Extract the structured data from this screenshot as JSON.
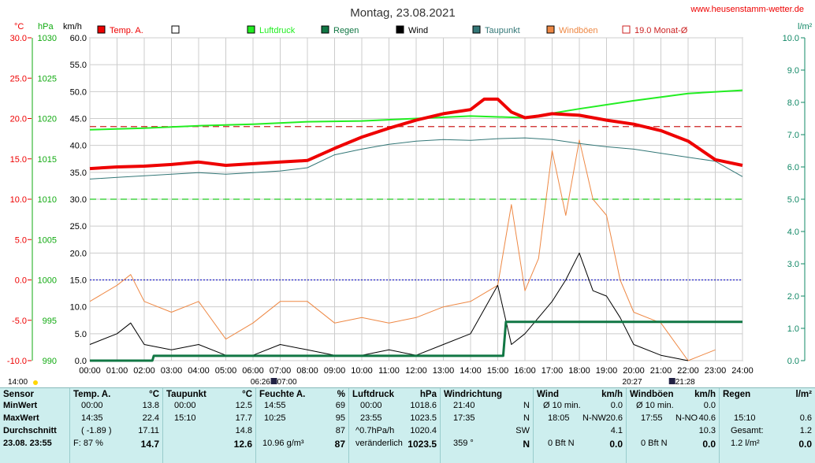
{
  "title": "Montag, 23.08.2021",
  "site": "www.heusenstamm-wetter.de",
  "axes": {
    "temp_unit": "°C",
    "hpa_unit": "hPa",
    "kmh_unit": "km/h",
    "rain_unit": "l/m²",
    "temp_ticks": [
      "30.0",
      "25.0",
      "20.0",
      "15.0",
      "10.0",
      "5.0",
      "0.0",
      "-5.0",
      "-10.0"
    ],
    "hpa_ticks": [
      "1030",
      "1025",
      "1020",
      "1015",
      "1010",
      "1005",
      "1000",
      "995",
      "990"
    ],
    "kmh_ticks": [
      "60.0",
      "55.0",
      "50.0",
      "45.0",
      "40.0",
      "35.0",
      "30.0",
      "25.0",
      "20.0",
      "15.0",
      "10.0",
      "5.0",
      "0.0"
    ],
    "rain_ticks": [
      "10.0",
      "9.0",
      "8.0",
      "7.0",
      "6.0",
      "5.0",
      "4.0",
      "3.0",
      "2.0",
      "1.0",
      "0.0"
    ],
    "x_ticks": [
      "00:00",
      "01:00",
      "02:00",
      "03:00",
      "04:00",
      "05:00",
      "06:00",
      "07:00",
      "08:00",
      "09:00",
      "10:00",
      "11:00",
      "12:00",
      "13:00",
      "14:00",
      "15:00",
      "16:00",
      "17:00",
      "18:00",
      "19:00",
      "20:00",
      "21:00",
      "22:00",
      "23:00",
      "24:00"
    ],
    "sun_labels": {
      "left": "14:00",
      "sunrise": "06:26",
      "civil": "07:00",
      "sunset": "20:27",
      "night": "21:28"
    }
  },
  "legend": [
    {
      "label": "Temp. A.",
      "color": "#ee0000",
      "style": "filled"
    },
    {
      "label": "",
      "color": "#000000",
      "style": "open"
    },
    {
      "label": "Luftdruck",
      "color": "#22ee22",
      "style": "filled"
    },
    {
      "label": "Regen",
      "color": "#117744",
      "style": "filled"
    },
    {
      "label": "Wind",
      "color": "#000000",
      "style": "filled"
    },
    {
      "label": "Taupunkt",
      "color": "#337777",
      "style": "filled"
    },
    {
      "label": "Windböen",
      "color": "#ee8844",
      "style": "filled"
    },
    {
      "label": "19.0 Monat-Ø",
      "color": "#cc2222",
      "style": "open"
    }
  ],
  "chart_data": {
    "type": "line",
    "x_range": [
      0,
      24
    ],
    "series": [
      {
        "name": "Temp. A.",
        "axis": "°C",
        "color": "#ee0000",
        "x": [
          0,
          1,
          2,
          3,
          4,
          5,
          6,
          7,
          8,
          9,
          10,
          11,
          12,
          13,
          14,
          14.5,
          15,
          15.5,
          16,
          16.5,
          17,
          18,
          19,
          20,
          21,
          22,
          23,
          24
        ],
        "values": [
          13.8,
          14.0,
          14.1,
          14.3,
          14.6,
          14.2,
          14.4,
          14.6,
          14.8,
          16.3,
          17.7,
          18.8,
          19.8,
          20.6,
          21.1,
          22.4,
          22.4,
          20.8,
          20.1,
          20.3,
          20.6,
          20.4,
          19.8,
          19.3,
          18.5,
          17.2,
          14.9,
          14.2
        ]
      },
      {
        "name": "Luftdruck",
        "axis": "hPa",
        "color": "#22ee22",
        "x": [
          0,
          2,
          4,
          6,
          8,
          10,
          12,
          14,
          16,
          18,
          20,
          22,
          24
        ],
        "values": [
          1018.6,
          1018.8,
          1019.1,
          1019.3,
          1019.6,
          1019.7,
          1020.0,
          1020.3,
          1020.1,
          1021.2,
          1022.2,
          1023.1,
          1023.5
        ]
      },
      {
        "name": "Taupunkt",
        "axis": "°C",
        "color": "#337777",
        "x": [
          0,
          1,
          2,
          3,
          4,
          5,
          6,
          7,
          8,
          9,
          10,
          11,
          12,
          13,
          14,
          15,
          16,
          17,
          18,
          19,
          20,
          21,
          22,
          23,
          24
        ],
        "values": [
          12.5,
          12.7,
          12.9,
          13.1,
          13.3,
          13.1,
          13.3,
          13.5,
          13.9,
          15.5,
          16.2,
          16.8,
          17.2,
          17.4,
          17.3,
          17.5,
          17.6,
          17.4,
          16.9,
          16.5,
          16.2,
          15.7,
          15.2,
          14.7,
          12.8
        ]
      },
      {
        "name": "Wind",
        "axis": "km/h",
        "color": "#000000",
        "x": [
          0,
          1,
          1.5,
          2,
          3,
          4,
          5,
          6,
          7,
          8,
          9,
          10,
          11,
          12,
          13,
          14,
          15,
          15.5,
          16,
          17,
          17.5,
          18,
          18.5,
          19,
          19.5,
          20,
          21,
          22
        ],
        "values": [
          3,
          5,
          7,
          3,
          2,
          3,
          1,
          1,
          3,
          2,
          1,
          1,
          2,
          1,
          3,
          5,
          14,
          3,
          5,
          11,
          15,
          20,
          13,
          12,
          8,
          3,
          1,
          0
        ]
      },
      {
        "name": "Windböen",
        "axis": "km/h",
        "color": "#ee8844",
        "x": [
          0,
          1,
          1.5,
          2,
          3,
          4,
          5,
          6,
          7,
          8,
          9,
          10,
          11,
          12,
          13,
          14,
          15,
          15.5,
          16,
          16.5,
          17,
          17.5,
          18,
          18.5,
          19,
          19.5,
          20,
          21,
          22,
          23
        ],
        "values": [
          11,
          14,
          16,
          11,
          9,
          11,
          4,
          7,
          11,
          11,
          7,
          8,
          7,
          8,
          10,
          11,
          14,
          29,
          13,
          19,
          39,
          27,
          41,
          30,
          27,
          15,
          9,
          7,
          0,
          2
        ]
      },
      {
        "name": "Regen",
        "axis": "l/m²",
        "color": "#117744",
        "x": [
          0,
          2.3,
          2.35,
          15.2,
          15.3,
          24
        ],
        "values": [
          0,
          0,
          0.15,
          0.15,
          1.2,
          1.2
        ]
      }
    ],
    "reference_lines": [
      {
        "name": "19.0 Monat-Ø",
        "axis": "°C",
        "value": 19.0,
        "style": "dashed",
        "color": "#cc2222"
      },
      {
        "name": "",
        "axis": "°C",
        "value": 10.0,
        "style": "dashed",
        "color": "#22cc22"
      },
      {
        "name": "",
        "axis": "°C",
        "value": 0.0,
        "style": "dotted",
        "color": "#2222cc"
      }
    ],
    "ylim_temp": [
      -10,
      30
    ],
    "ylim_hpa": [
      990,
      1030
    ],
    "ylim_kmh": [
      0,
      60
    ],
    "ylim_rain": [
      0,
      10
    ],
    "grid": true,
    "legend_position": "top"
  },
  "table": {
    "sensor": {
      "hdr": "Sensor",
      "rows": [
        "MinWert",
        "MaxWert",
        "Durchschnitt"
      ],
      "date": "23.08. 23:55"
    },
    "temp": {
      "hdr": "Temp. A.",
      "unit": "°C",
      "rows": [
        [
          "00:00",
          "13.8"
        ],
        [
          "14:35",
          "22.4"
        ],
        [
          "( -1.89 )",
          "17.11"
        ]
      ],
      "foot_a": "F: 87 %",
      "foot_b": "14.7"
    },
    "tau": {
      "hdr": "Taupunkt",
      "unit": "°C",
      "rows": [
        [
          "00:00",
          "12.5"
        ],
        [
          "15:10",
          "17.7"
        ],
        [
          "",
          "14.8"
        ]
      ],
      "foot_b": "12.6"
    },
    "feuchte": {
      "hdr": "Feuchte A.",
      "unit": "%",
      "rows": [
        [
          "14:55",
          "69"
        ],
        [
          "10:25",
          "95"
        ],
        [
          "",
          "87"
        ]
      ],
      "foot_a": "10.96 g/m³",
      "foot_b": "87"
    },
    "luft": {
      "hdr": "Luftdruck",
      "unit": "hPa",
      "rows": [
        [
          "00:00",
          "1018.6"
        ],
        [
          "23:55",
          "1023.5"
        ],
        [
          "^0.7hPa/h",
          "1020.4"
        ]
      ],
      "foot_a": "veränderlich",
      "foot_b": "1023.5"
    },
    "richt": {
      "hdr": "Windrichtung",
      "rows": [
        [
          "21:40",
          "N"
        ],
        [
          "17:35",
          "N"
        ],
        [
          "",
          "SW"
        ]
      ],
      "foot_a": "359 °",
      "foot_b": "N"
    },
    "wind": {
      "hdr": "Wind",
      "unit": "km/h",
      "rows": [
        [
          "Ø 10 min.",
          "",
          "0.0"
        ],
        [
          "18:05",
          "N-NW",
          "20.6"
        ],
        [
          "",
          "",
          "4.1"
        ]
      ],
      "foot_a": "0 Bft N",
      "foot_b": "0.0"
    },
    "boen": {
      "hdr": "Windböen",
      "unit": "km/h",
      "rows": [
        [
          "Ø 10 min.",
          "",
          "0.0"
        ],
        [
          "17:55",
          "N-NO",
          "40.6"
        ],
        [
          "",
          "",
          "10.3"
        ]
      ],
      "foot_a": "0 Bft N",
      "foot_b": "0.0"
    },
    "regen": {
      "hdr": "Regen",
      "unit": "l/m²",
      "rows": [
        [
          "",
          "",
          ""
        ],
        [
          "15:10",
          "",
          "0.6"
        ],
        [
          "Gesamt:",
          "",
          "1.2"
        ]
      ],
      "foot_a": "1.2 l/m²",
      "foot_b": "0.0"
    }
  }
}
